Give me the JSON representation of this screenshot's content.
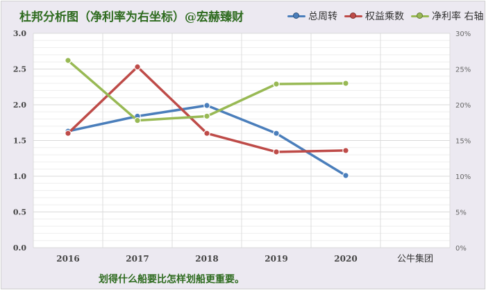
{
  "title": "杜邦分析图（净利率为右坐标）@宏赫臻财",
  "caption": "划得什么船要比怎样划船更重要。",
  "extra_category_label": "公牛集团",
  "chart_data": {
    "type": "line",
    "categories": [
      "2016",
      "2017",
      "2018",
      "2019",
      "2020"
    ],
    "series": [
      {
        "name": "总周转",
        "axis": "left",
        "color": "#4a7ebb",
        "values": [
          1.63,
          1.84,
          1.99,
          1.6,
          1.01
        ]
      },
      {
        "name": "权益乘数",
        "axis": "left",
        "color": "#be4b48",
        "values": [
          1.6,
          2.53,
          1.6,
          1.34,
          1.36
        ]
      },
      {
        "name": "净利率 右轴",
        "axis": "right",
        "color": "#98b954",
        "values": [
          0.262,
          0.178,
          0.184,
          0.229,
          0.23
        ]
      }
    ],
    "y_left": {
      "ylim": [
        0,
        3.0
      ],
      "ticks": [
        "0.0",
        "0.5",
        "1.0",
        "1.5",
        "2.0",
        "2.5",
        "3.0"
      ]
    },
    "y_right": {
      "ylim": [
        0,
        0.3
      ],
      "ticks": [
        "0%",
        "5%",
        "10%",
        "15%",
        "20%",
        "25%",
        "30%"
      ]
    },
    "legend_position": "top-right",
    "grid": true
  }
}
